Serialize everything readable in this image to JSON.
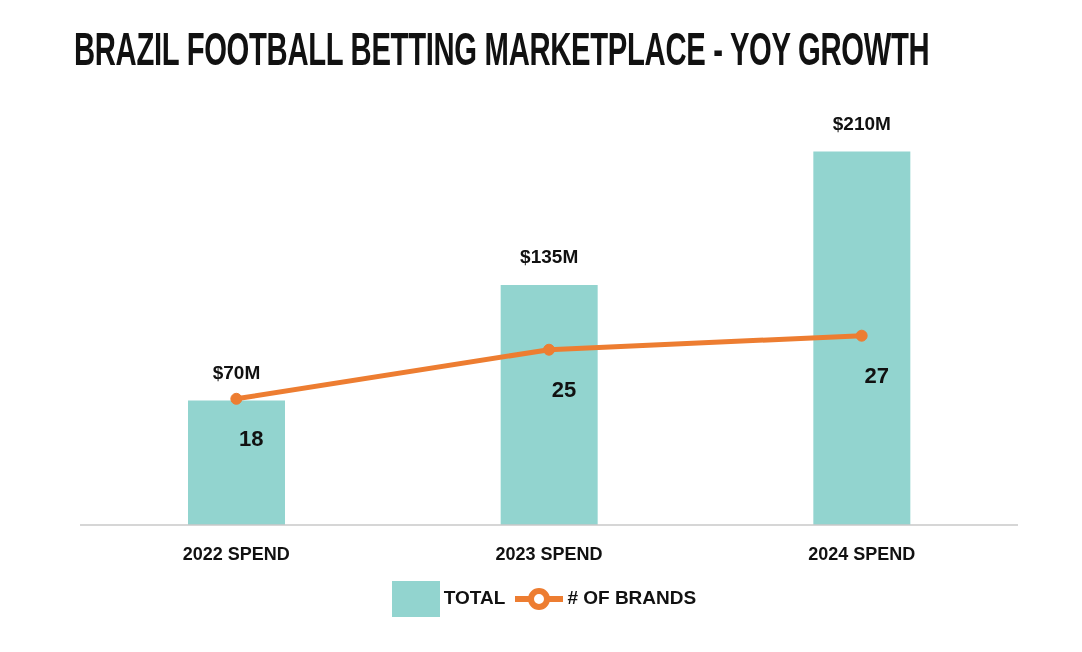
{
  "chart_data": {
    "type": "bar",
    "title": "BRAZIL FOOTBALL BETTING MARKETPLACE - YOY GROWTH",
    "categories": [
      "2022 SPEND",
      "2023 SPEND",
      "2024 SPEND"
    ],
    "legend": "bottom",
    "series": [
      {
        "name": "TOTAL",
        "color": "#92d4cf",
        "values": [
          70,
          135,
          210
        ],
        "value_labels": [
          "$70M",
          "$135M",
          "$210M"
        ]
      },
      {
        "name": "# OF BRANDS",
        "type": "line",
        "axis": "y2",
        "color": "#ed7d31",
        "marker": "circle",
        "values": [
          18,
          25,
          27
        ],
        "value_labels": [
          "18",
          "25",
          "27"
        ]
      }
    ]
  }
}
